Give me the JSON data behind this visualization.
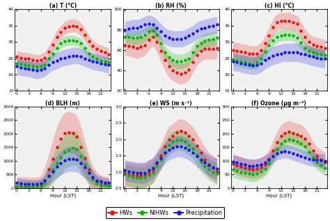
{
  "hours": [
    0,
    1,
    2,
    3,
    4,
    5,
    6,
    7,
    8,
    9,
    10,
    11,
    12,
    13,
    14,
    15,
    16,
    17,
    18,
    19,
    20,
    21,
    22,
    23
  ],
  "panels": [
    {
      "label": "(a) T (°C)",
      "ylim": [
        15,
        40
      ],
      "yticks": [
        15,
        20,
        25,
        30,
        35,
        40
      ],
      "HWs": [
        25.5,
        25.2,
        25.0,
        24.8,
        24.5,
        24.3,
        24.5,
        25.2,
        27.0,
        29.2,
        31.5,
        33.0,
        34.2,
        34.8,
        35.0,
        34.8,
        33.8,
        32.2,
        30.2,
        28.8,
        27.8,
        27.2,
        26.8,
        26.2
      ],
      "NIHWs": [
        23.5,
        23.2,
        23.0,
        22.8,
        22.5,
        22.3,
        22.5,
        23.0,
        24.8,
        26.5,
        28.0,
        29.5,
        30.2,
        30.5,
        30.5,
        30.2,
        29.5,
        28.0,
        26.5,
        25.5,
        24.8,
        24.3,
        24.0,
        23.8
      ],
      "Prec": [
        22.5,
        22.2,
        22.0,
        21.8,
        21.5,
        21.3,
        21.5,
        22.0,
        23.0,
        23.8,
        24.2,
        24.8,
        25.2,
        25.5,
        25.8,
        25.8,
        25.5,
        25.0,
        24.5,
        24.0,
        23.8,
        23.5,
        23.2,
        23.0
      ],
      "HWs_std": [
        1.8,
        1.8,
        1.8,
        1.8,
        1.8,
        1.8,
        1.8,
        1.8,
        1.8,
        1.8,
        2.0,
        2.0,
        2.0,
        2.0,
        2.0,
        2.0,
        2.0,
        2.0,
        2.0,
        1.8,
        1.8,
        1.8,
        1.8,
        1.8
      ],
      "NIHWs_std": [
        1.2,
        1.2,
        1.2,
        1.2,
        1.2,
        1.2,
        1.2,
        1.2,
        1.2,
        1.5,
        1.5,
        1.5,
        1.5,
        1.5,
        1.5,
        1.5,
        1.5,
        1.5,
        1.5,
        1.2,
        1.2,
        1.2,
        1.2,
        1.2
      ],
      "Prec_std": [
        2.5,
        2.5,
        2.5,
        2.5,
        2.5,
        2.5,
        2.5,
        2.5,
        2.5,
        2.5,
        2.5,
        2.5,
        2.5,
        2.5,
        2.5,
        2.5,
        2.5,
        2.5,
        2.5,
        2.5,
        2.5,
        2.5,
        2.5,
        2.5
      ]
    },
    {
      "label": "(b) RH (%)",
      "ylim": [
        20,
        100
      ],
      "yticks": [
        20,
        40,
        60,
        80,
        100
      ],
      "HWs": [
        65,
        64,
        63,
        62,
        63,
        65,
        70,
        73,
        68,
        59,
        50,
        44,
        40,
        38,
        37,
        38,
        41,
        48,
        55,
        59,
        61,
        61,
        61,
        62
      ],
      "NIHWs": [
        73,
        73,
        72,
        72,
        73,
        75,
        78,
        79,
        75,
        67,
        58,
        53,
        50,
        49,
        49,
        50,
        52,
        58,
        64,
        67,
        69,
        70,
        71,
        72
      ],
      "Prec": [
        80,
        81,
        82,
        82,
        83,
        85,
        86,
        85,
        82,
        78,
        74,
        72,
        71,
        71,
        71,
        72,
        74,
        76,
        79,
        81,
        82,
        83,
        84,
        85
      ],
      "HWs_std": [
        10,
        10,
        10,
        10,
        10,
        10,
        10,
        10,
        10,
        10,
        10,
        10,
        10,
        10,
        10,
        10,
        10,
        10,
        10,
        10,
        10,
        10,
        10,
        10
      ],
      "NIHWs_std": [
        7,
        7,
        7,
        7,
        7,
        7,
        7,
        7,
        7,
        7,
        7,
        7,
        7,
        7,
        7,
        7,
        7,
        7,
        7,
        7,
        7,
        7,
        7,
        7
      ],
      "Prec_std": [
        8,
        8,
        8,
        8,
        8,
        8,
        8,
        8,
        8,
        8,
        8,
        8,
        8,
        8,
        8,
        8,
        8,
        8,
        8,
        8,
        8,
        8,
        8,
        8
      ]
    },
    {
      "label": "(c) HI (°C)",
      "ylim": [
        15,
        40
      ],
      "yticks": [
        15,
        20,
        25,
        30,
        35,
        40
      ],
      "HWs": [
        27.5,
        27.2,
        27.0,
        26.8,
        26.5,
        26.3,
        26.5,
        27.5,
        29.5,
        32.0,
        34.5,
        36.0,
        36.5,
        36.5,
        36.5,
        36.0,
        35.5,
        33.5,
        31.5,
        30.0,
        29.2,
        28.8,
        28.5,
        28.2
      ],
      "NIHWs": [
        24.5,
        24.2,
        24.0,
        23.8,
        23.5,
        23.3,
        23.8,
        25.0,
        27.0,
        29.0,
        30.5,
        31.5,
        32.0,
        32.2,
        32.2,
        32.0,
        31.2,
        29.8,
        28.2,
        27.2,
        26.8,
        26.5,
        26.2,
        26.0
      ],
      "Prec": [
        24.0,
        23.8,
        23.5,
        23.2,
        23.0,
        22.8,
        23.0,
        23.5,
        24.5,
        25.2,
        25.8,
        26.2,
        26.5,
        26.8,
        26.8,
        26.8,
        26.8,
        26.5,
        26.2,
        25.8,
        25.5,
        25.2,
        25.0,
        24.8
      ],
      "HWs_std": [
        2.5,
        2.5,
        2.5,
        2.5,
        2.5,
        2.5,
        2.5,
        2.5,
        2.5,
        2.5,
        2.5,
        2.5,
        2.5,
        2.5,
        2.5,
        2.5,
        2.5,
        2.5,
        2.5,
        2.5,
        2.5,
        2.5,
        2.5,
        2.5
      ],
      "NIHWs_std": [
        1.8,
        1.8,
        1.8,
        1.8,
        1.8,
        1.8,
        1.8,
        1.8,
        1.8,
        1.8,
        1.8,
        1.8,
        1.8,
        1.8,
        1.8,
        1.8,
        1.8,
        1.8,
        1.8,
        1.8,
        1.8,
        1.8,
        1.8,
        1.8
      ],
      "Prec_std": [
        2.8,
        2.8,
        2.8,
        2.8,
        2.8,
        2.8,
        2.8,
        2.8,
        2.8,
        2.8,
        2.8,
        2.8,
        2.8,
        2.8,
        2.8,
        2.8,
        2.8,
        2.8,
        2.8,
        2.8,
        2.8,
        2.8,
        2.8,
        2.8
      ]
    },
    {
      "label": "(d) BLH (m)",
      "ylim": [
        0,
        3000
      ],
      "yticks": [
        0,
        500,
        1000,
        1500,
        2000,
        2500,
        3000
      ],
      "HWs": [
        80,
        70,
        60,
        55,
        55,
        65,
        90,
        280,
        680,
        1080,
        1500,
        1820,
        2020,
        2060,
        2020,
        1900,
        1520,
        1100,
        680,
        380,
        230,
        160,
        120,
        100
      ],
      "NIHWs": [
        70,
        60,
        55,
        50,
        50,
        55,
        75,
        180,
        430,
        680,
        920,
        1120,
        1320,
        1420,
        1480,
        1430,
        1180,
        880,
        580,
        330,
        180,
        120,
        95,
        80
      ],
      "Prec": [
        200,
        180,
        165,
        155,
        150,
        155,
        175,
        280,
        450,
        620,
        800,
        920,
        1020,
        1070,
        1070,
        1040,
        920,
        770,
        570,
        400,
        295,
        245,
        215,
        205
      ],
      "HWs_std": [
        350,
        350,
        350,
        350,
        350,
        350,
        380,
        500,
        600,
        700,
        750,
        750,
        750,
        750,
        750,
        750,
        750,
        650,
        550,
        450,
        380,
        330,
        320,
        320
      ],
      "NIHWs_std": [
        220,
        220,
        220,
        220,
        220,
        220,
        250,
        320,
        430,
        530,
        580,
        620,
        630,
        630,
        630,
        620,
        610,
        520,
        420,
        310,
        255,
        215,
        210,
        215
      ],
      "Prec_std": [
        180,
        175,
        170,
        165,
        165,
        168,
        175,
        220,
        310,
        370,
        415,
        435,
        455,
        460,
        458,
        452,
        428,
        388,
        308,
        258,
        208,
        188,
        170,
        168
      ]
    },
    {
      "label": "(e) WS (m s⁻¹)",
      "ylim": [
        0.5,
        3.0
      ],
      "yticks": [
        0.5,
        1.0,
        1.5,
        2.0,
        2.5,
        3.0
      ],
      "HWs": [
        0.95,
        0.92,
        0.9,
        0.88,
        0.88,
        0.9,
        0.98,
        1.05,
        1.25,
        1.5,
        1.78,
        2.0,
        2.1,
        2.2,
        2.25,
        2.2,
        2.1,
        2.0,
        1.8,
        1.58,
        1.38,
        1.22,
        1.12,
        1.02
      ],
      "NIHWs": [
        0.92,
        0.88,
        0.85,
        0.83,
        0.83,
        0.85,
        0.9,
        0.98,
        1.18,
        1.38,
        1.62,
        1.82,
        1.92,
        1.98,
        1.98,
        1.92,
        1.82,
        1.72,
        1.52,
        1.32,
        1.18,
        1.08,
        1.0,
        0.95
      ],
      "Prec": [
        1.05,
        1.02,
        1.0,
        0.98,
        0.97,
        0.98,
        1.05,
        1.12,
        1.28,
        1.42,
        1.58,
        1.68,
        1.73,
        1.78,
        1.78,
        1.73,
        1.68,
        1.58,
        1.48,
        1.38,
        1.28,
        1.2,
        1.14,
        1.09
      ],
      "HWs_std": [
        0.38,
        0.38,
        0.38,
        0.38,
        0.38,
        0.38,
        0.38,
        0.38,
        0.38,
        0.38,
        0.38,
        0.38,
        0.38,
        0.38,
        0.38,
        0.38,
        0.38,
        0.38,
        0.38,
        0.38,
        0.38,
        0.38,
        0.38,
        0.38
      ],
      "NIHWs_std": [
        0.32,
        0.32,
        0.32,
        0.32,
        0.32,
        0.32,
        0.32,
        0.32,
        0.32,
        0.32,
        0.32,
        0.32,
        0.32,
        0.32,
        0.32,
        0.32,
        0.32,
        0.32,
        0.32,
        0.32,
        0.32,
        0.32,
        0.32,
        0.32
      ],
      "Prec_std": [
        0.32,
        0.32,
        0.32,
        0.32,
        0.32,
        0.32,
        0.32,
        0.32,
        0.32,
        0.32,
        0.32,
        0.32,
        0.32,
        0.32,
        0.32,
        0.32,
        0.32,
        0.32,
        0.32,
        0.32,
        0.32,
        0.32,
        0.32,
        0.32
      ]
    },
    {
      "label": "(f) Ozone (μg m⁻³)",
      "ylim": [
        0,
        300
      ],
      "yticks": [
        0,
        50,
        100,
        150,
        200,
        250,
        300
      ],
      "HWs": [
        90,
        85,
        80,
        75,
        72,
        70,
        72,
        78,
        88,
        108,
        138,
        168,
        193,
        203,
        208,
        203,
        198,
        193,
        183,
        163,
        138,
        118,
        106,
        96
      ],
      "NIHWs": [
        68,
        63,
        60,
        56,
        53,
        52,
        55,
        62,
        72,
        92,
        118,
        143,
        163,
        173,
        178,
        176,
        171,
        163,
        153,
        133,
        113,
        96,
        84,
        74
      ],
      "Prec": [
        98,
        94,
        90,
        86,
        83,
        82,
        84,
        88,
        96,
        106,
        118,
        128,
        133,
        136,
        133,
        128,
        123,
        118,
        113,
        108,
        106,
        104,
        102,
        100
      ],
      "HWs_std": [
        35,
        35,
        35,
        35,
        35,
        35,
        35,
        35,
        35,
        35,
        38,
        40,
        40,
        40,
        40,
        40,
        40,
        40,
        38,
        35,
        35,
        35,
        35,
        35
      ],
      "NIHWs_std": [
        28,
        28,
        28,
        28,
        28,
        28,
        28,
        28,
        28,
        28,
        30,
        32,
        32,
        32,
        32,
        32,
        32,
        32,
        30,
        28,
        28,
        28,
        28,
        28
      ],
      "Prec_std": [
        25,
        25,
        25,
        25,
        25,
        25,
        25,
        25,
        25,
        25,
        25,
        25,
        25,
        25,
        25,
        25,
        25,
        25,
        25,
        25,
        25,
        25,
        25,
        25
      ]
    }
  ],
  "colors": {
    "HWs": "#e8120a",
    "NIHWs": "#00b800",
    "Prec": "#1616e8"
  },
  "alpha_fill": 0.22,
  "markersize": 3.2,
  "linewidth": 0.0,
  "xticks": [
    0,
    3,
    6,
    9,
    12,
    15,
    18,
    21
  ],
  "xlabel": "Hour (LST)",
  "legend_labels": [
    "HWs",
    "NIHWs",
    "Precipitation"
  ],
  "bg_color": "#f0f0f0"
}
